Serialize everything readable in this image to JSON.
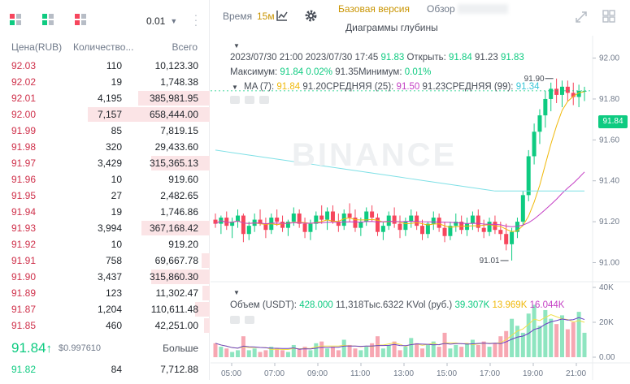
{
  "orderbook": {
    "precision": "0.01",
    "headers": [
      "Цена(RUB)",
      "Количество...",
      "Всего"
    ],
    "asks": [
      {
        "price": "92.03",
        "qty": "110",
        "total": "10,123.30",
        "depth": 0
      },
      {
        "price": "92.02",
        "qty": "19",
        "total": "1,748.38",
        "depth": 0
      },
      {
        "price": "92.01",
        "qty": "4,195",
        "total": "385,981.95",
        "depth": 0.59
      },
      {
        "price": "92.00",
        "qty": "7,157",
        "total": "658,444.00",
        "depth": 1.0
      },
      {
        "price": "91.99",
        "qty": "85",
        "total": "7,819.15",
        "depth": 0
      },
      {
        "price": "91.98",
        "qty": "320",
        "total": "29,433.60",
        "depth": 0
      },
      {
        "price": "91.97",
        "qty": "3,429",
        "total": "315,365.13",
        "depth": 0.48
      },
      {
        "price": "91.96",
        "qty": "10",
        "total": "919.60",
        "depth": 0
      },
      {
        "price": "91.95",
        "qty": "27",
        "total": "2,482.65",
        "depth": 0
      },
      {
        "price": "91.94",
        "qty": "19",
        "total": "1,746.86",
        "depth": 0
      },
      {
        "price": "91.93",
        "qty": "3,994",
        "total": "367,168.42",
        "depth": 0.56
      },
      {
        "price": "91.92",
        "qty": "10",
        "total": "919.20",
        "depth": 0
      },
      {
        "price": "91.91",
        "qty": "758",
        "total": "69,667.78",
        "depth": 0.07
      },
      {
        "price": "91.90",
        "qty": "3,437",
        "total": "315,860.30",
        "depth": 0.48
      },
      {
        "price": "91.89",
        "qty": "123",
        "total": "11,302.47",
        "depth": 0.06
      },
      {
        "price": "91.87",
        "qty": "1,204",
        "total": "110,611.48",
        "depth": 0.12
      },
      {
        "price": "91.85",
        "qty": "460",
        "total": "42,251.00",
        "depth": 0.05
      }
    ],
    "last_price": "91.84",
    "usd_price": "$0.997610",
    "more_label": "Больше",
    "bid": {
      "price": "91.82",
      "qty": "84",
      "total": "7,712.88"
    }
  },
  "toolbar": {
    "time_label": "Время",
    "interval": "15м",
    "chart_icon": "candles-icon",
    "settings_icon": "gear-icon",
    "tab_basic": "Базовая версия",
    "tab_overview": "Обзор",
    "tab_depth": "Диаграммы глубины",
    "expand_icon": "expand-icon",
    "grid_icon": "grid-icon"
  },
  "info": {
    "line1_date": "2023/07/30 21:00",
    "line1_time": "2023/07/30 17:45",
    "line1_price": "91.83",
    "open_label": "Открыть:",
    "open_val": "91.84",
    "hl_a": "91.23",
    "hl_b": "91.83",
    "max_label": "Максимум:",
    "max_val": "91.84",
    "change": "0.02%",
    "min_text": "91.35Минимум:",
    "min_change": "0.01%",
    "ma_label": "MA (7):",
    "ma7": "91.84",
    "ma25_text": "91.20СРЕДНЯЯ (25):",
    "ma25": "91.50",
    "ma99_text": "91.23СРЕДНЯЯ (99):",
    "ma99": "91.34",
    "vol_label": "Объем (USDT):",
    "vol1": "428.000",
    "vol_text": "11,318Тыс.6322 KVol (руб.)",
    "vol2": "39.307K",
    "vol3": "13.969K",
    "vol4": "16.044K",
    "watermark": "BINANCE"
  },
  "chart_data": {
    "type": "candlestick",
    "price_axis": [
      "92.00",
      "91.80",
      "91.60",
      "91.40",
      "91.20",
      "91.00"
    ],
    "volume_axis": [
      "40K",
      "20K",
      "0.00"
    ],
    "x_labels": [
      "05:00",
      "07:00",
      "09:00",
      "11:00",
      "13:00",
      "15:00",
      "17:00",
      "19:00",
      "21:00"
    ],
    "high_label": "91.90",
    "low_label": "91.01",
    "last_price": "91.84",
    "ylim": [
      90.99,
      92.03
    ],
    "candles": [
      [
        91.21,
        91.24,
        91.17,
        91.19
      ],
      [
        91.19,
        91.23,
        91.14,
        91.22
      ],
      [
        91.22,
        91.25,
        91.16,
        91.18
      ],
      [
        91.18,
        91.22,
        91.12,
        91.2
      ],
      [
        91.2,
        91.26,
        91.17,
        91.23
      ],
      [
        91.23,
        91.24,
        91.1,
        91.14
      ],
      [
        91.14,
        91.2,
        91.11,
        91.18
      ],
      [
        91.18,
        91.24,
        91.15,
        91.21
      ],
      [
        91.21,
        91.26,
        91.18,
        91.19
      ],
      [
        91.19,
        91.22,
        91.12,
        91.16
      ],
      [
        91.16,
        91.24,
        91.14,
        91.22
      ],
      [
        91.22,
        91.26,
        91.18,
        91.2
      ],
      [
        91.2,
        91.23,
        91.15,
        91.17
      ],
      [
        91.17,
        91.21,
        91.13,
        91.2
      ],
      [
        91.2,
        91.27,
        91.18,
        91.24
      ],
      [
        91.24,
        91.26,
        91.17,
        91.19
      ],
      [
        91.19,
        91.22,
        91.12,
        91.15
      ],
      [
        91.15,
        91.21,
        91.11,
        91.19
      ],
      [
        91.19,
        91.25,
        91.16,
        91.23
      ],
      [
        91.23,
        91.28,
        91.19,
        91.21
      ],
      [
        91.21,
        91.27,
        91.16,
        91.25
      ],
      [
        91.25,
        91.28,
        91.19,
        91.2
      ],
      [
        91.2,
        91.24,
        91.15,
        91.18
      ],
      [
        91.18,
        91.26,
        91.16,
        91.24
      ],
      [
        91.24,
        91.29,
        91.2,
        91.22
      ],
      [
        91.22,
        91.26,
        91.15,
        91.17
      ],
      [
        91.17,
        91.22,
        91.13,
        91.2
      ],
      [
        91.2,
        91.27,
        91.18,
        91.25
      ],
      [
        91.25,
        91.28,
        91.2,
        91.22
      ],
      [
        91.22,
        91.24,
        91.13,
        91.15
      ],
      [
        91.15,
        91.2,
        91.11,
        91.18
      ],
      [
        91.18,
        91.25,
        91.16,
        91.23
      ],
      [
        91.23,
        91.27,
        91.17,
        91.19
      ],
      [
        91.19,
        91.23,
        91.12,
        91.16
      ],
      [
        91.16,
        91.22,
        91.13,
        91.2
      ],
      [
        91.2,
        91.26,
        91.17,
        91.23
      ],
      [
        91.23,
        91.25,
        91.16,
        91.18
      ],
      [
        91.18,
        91.21,
        91.11,
        91.14
      ],
      [
        91.14,
        91.2,
        91.12,
        91.19
      ],
      [
        91.19,
        91.25,
        91.16,
        91.22
      ],
      [
        91.22,
        91.24,
        91.15,
        91.17
      ],
      [
        91.17,
        91.2,
        91.1,
        91.13
      ],
      [
        91.13,
        91.2,
        91.11,
        91.18
      ],
      [
        91.18,
        91.24,
        91.15,
        91.2
      ],
      [
        91.2,
        91.23,
        91.14,
        91.16
      ],
      [
        91.16,
        91.22,
        91.13,
        91.19
      ],
      [
        91.19,
        91.25,
        91.16,
        91.23
      ],
      [
        91.23,
        91.26,
        91.15,
        91.17
      ],
      [
        91.17,
        91.21,
        91.12,
        91.15
      ],
      [
        91.15,
        91.22,
        91.13,
        91.2
      ],
      [
        91.2,
        91.23,
        91.14,
        91.16
      ],
      [
        91.16,
        91.2,
        91.11,
        91.14
      ],
      [
        91.14,
        91.19,
        91.06,
        91.09
      ],
      [
        91.09,
        91.17,
        91.01,
        91.15
      ],
      [
        91.15,
        91.22,
        91.12,
        91.2
      ],
      [
        91.2,
        91.35,
        91.18,
        91.33
      ],
      [
        91.33,
        91.55,
        91.3,
        91.52
      ],
      [
        91.52,
        91.68,
        91.48,
        91.64
      ],
      [
        91.64,
        91.75,
        91.58,
        91.72
      ],
      [
        91.72,
        91.84,
        91.66,
        91.8
      ],
      [
        91.8,
        91.88,
        91.74,
        91.85
      ],
      [
        91.85,
        91.9,
        91.78,
        91.82
      ],
      [
        91.82,
        91.89,
        91.76,
        91.86
      ],
      [
        91.86,
        91.89,
        91.79,
        91.83
      ],
      [
        91.83,
        91.88,
        91.77,
        91.81
      ],
      [
        91.81,
        91.87,
        91.76,
        91.84
      ],
      [
        91.84,
        91.86,
        91.79,
        91.84
      ]
    ],
    "volumes": [
      8,
      6,
      5,
      3,
      4,
      12,
      4,
      5,
      3,
      4,
      6,
      5,
      4,
      3,
      7,
      5,
      6,
      4,
      8,
      9,
      5,
      6,
      4,
      10,
      7,
      5,
      4,
      6,
      8,
      12,
      5,
      7,
      9,
      4,
      6,
      11,
      8,
      5,
      7,
      9,
      6,
      14,
      5,
      7,
      6,
      8,
      10,
      7,
      9,
      6,
      8,
      12,
      15,
      22,
      18,
      14,
      25,
      30,
      18,
      27,
      22,
      19,
      24,
      16,
      20,
      26,
      14
    ]
  }
}
